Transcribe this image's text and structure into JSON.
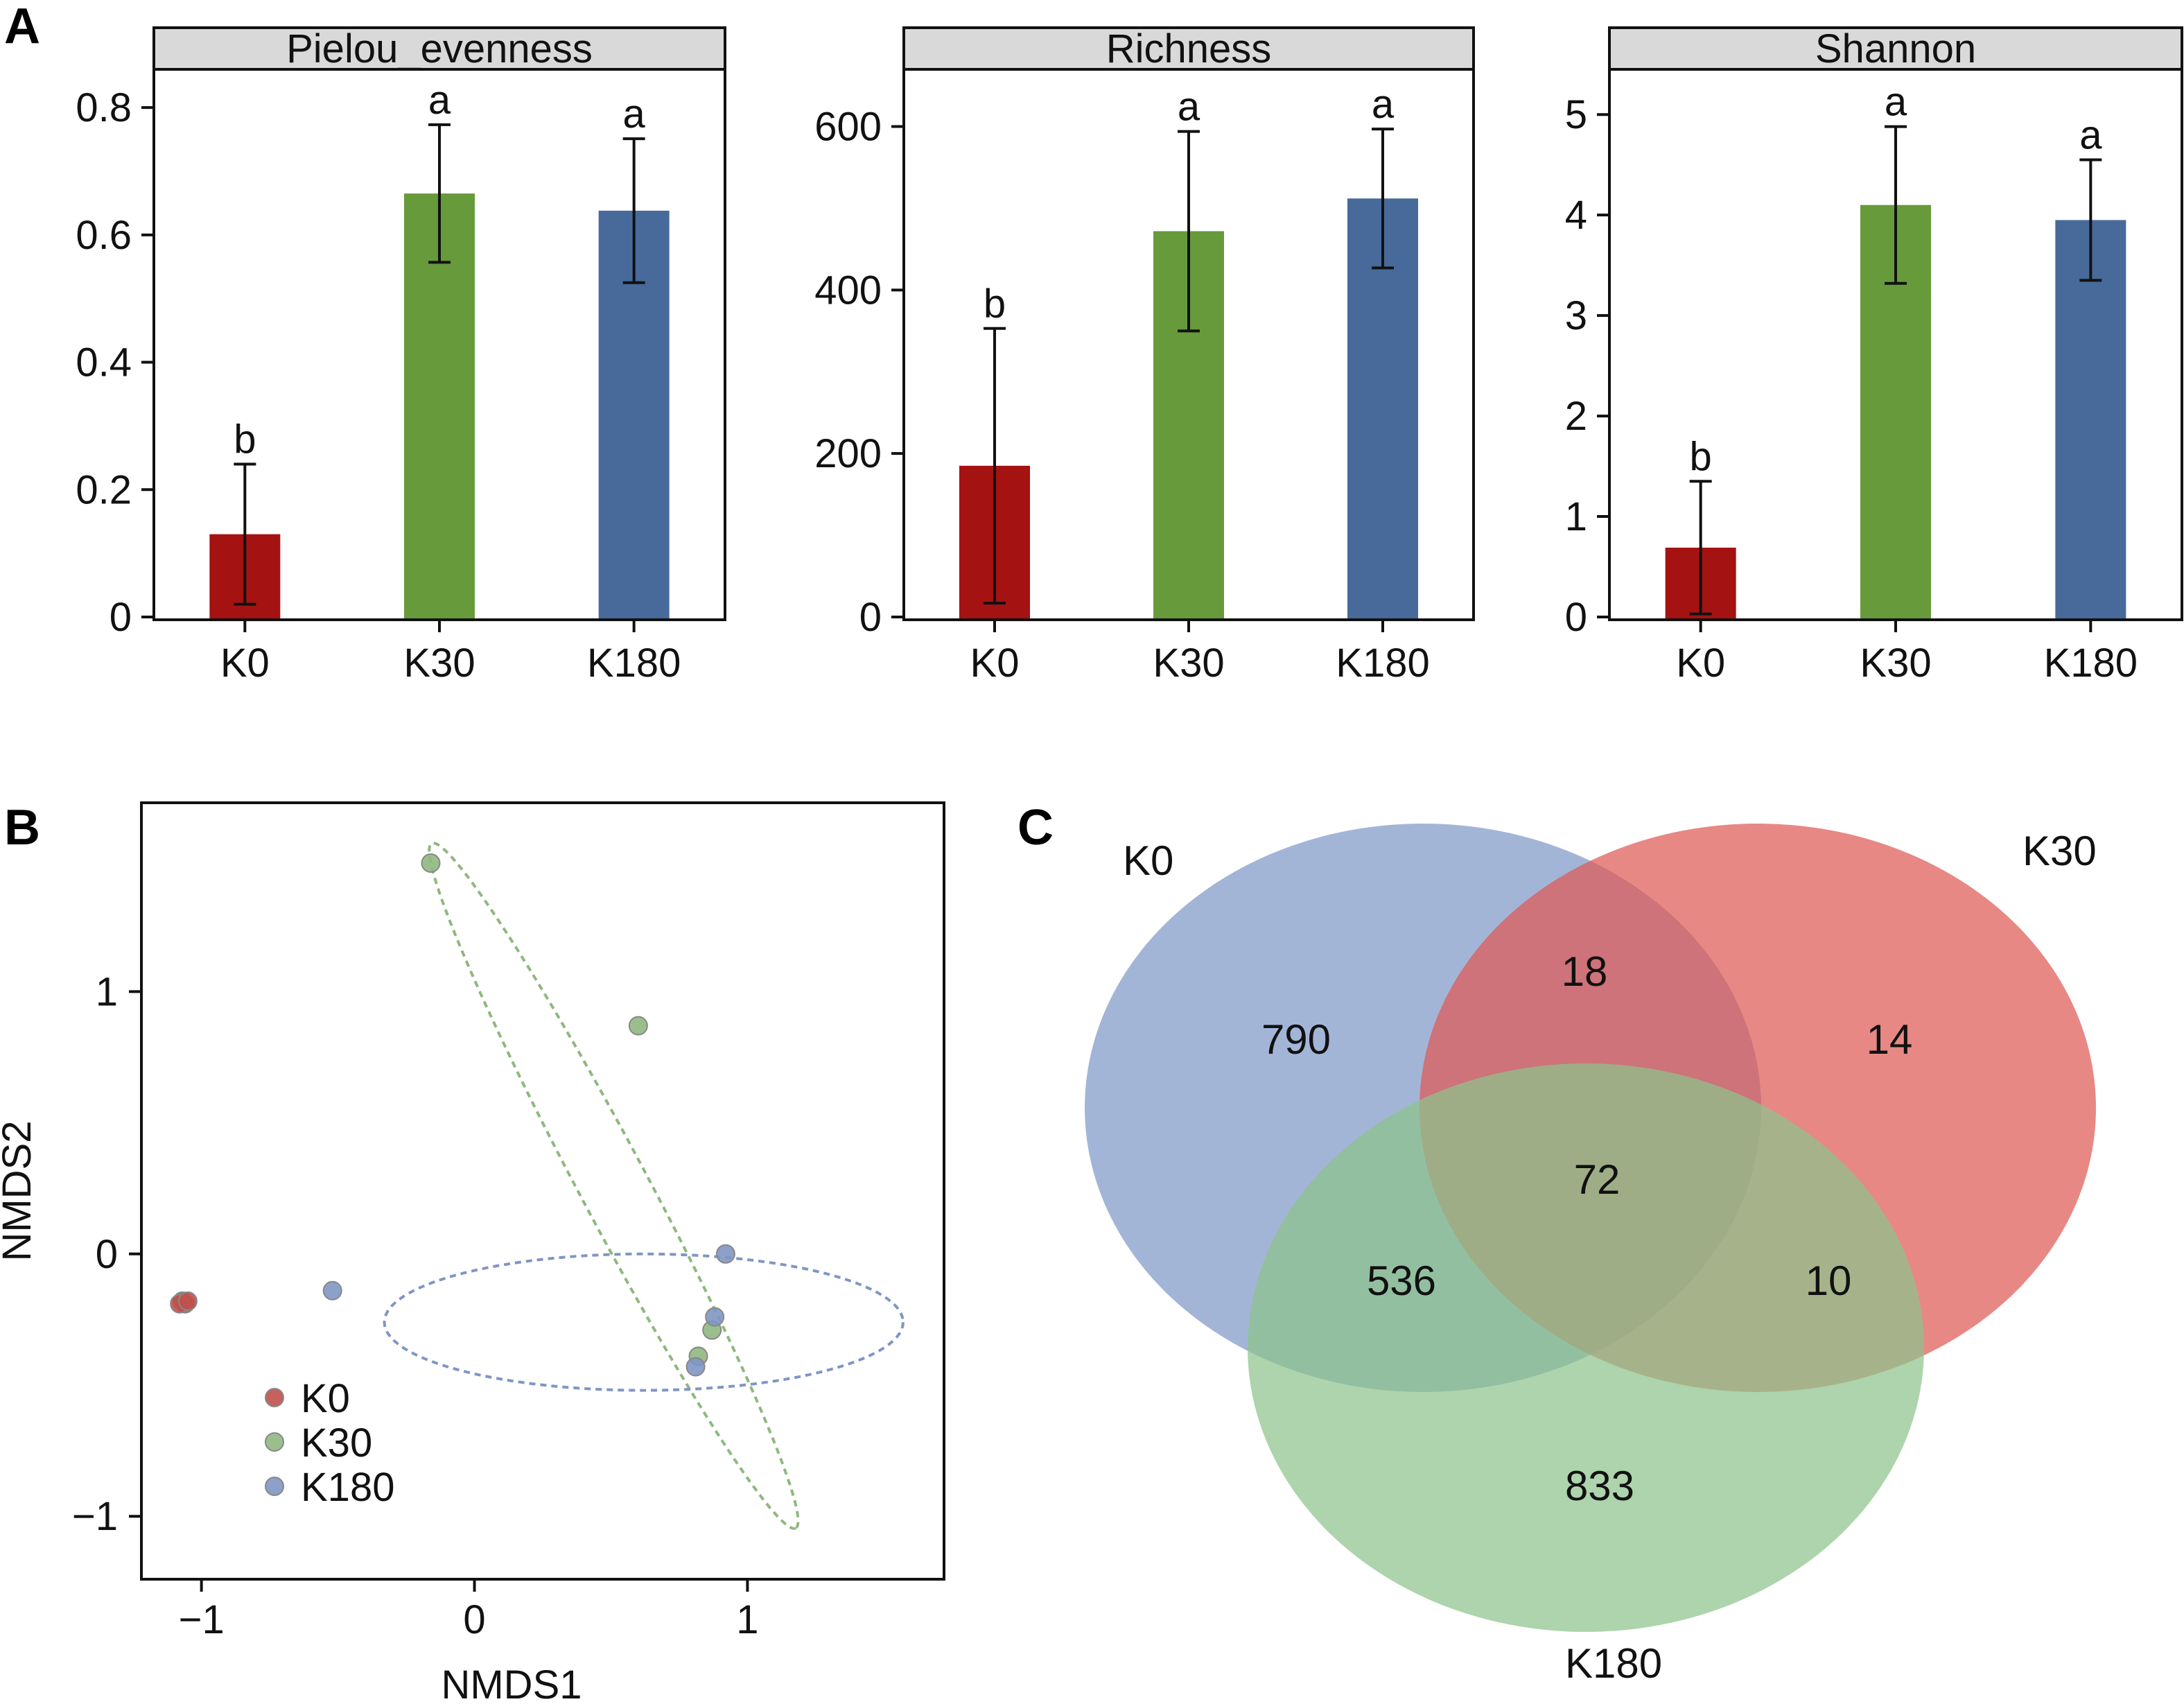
{
  "panel_labels": {
    "a": "A",
    "b": "B",
    "c": "C"
  },
  "colors": {
    "K0": "#a51212",
    "K30": "#679a3b",
    "K180": "#476a9b"
  },
  "chart_data": [
    {
      "type": "bar",
      "panel": "A",
      "title": "Pielou_evenness",
      "categories": [
        "K0",
        "K30",
        "K180"
      ],
      "values": [
        0.13,
        0.665,
        0.638
      ],
      "errors": [
        0.11,
        0.108,
        0.113
      ],
      "significance": [
        "b",
        "a",
        "a"
      ],
      "ylim": [
        0,
        0.86
      ],
      "yticks": [
        0,
        0.2,
        0.4,
        0.6,
        0.8
      ],
      "ytick_labels": [
        "0",
        "0.2",
        "0.4",
        "0.6",
        "0.8"
      ]
    },
    {
      "type": "bar",
      "panel": "A",
      "title": "Richness",
      "categories": [
        "K0",
        "K30",
        "K180"
      ],
      "values": [
        185,
        472,
        512
      ],
      "errors": [
        168,
        122,
        85
      ],
      "significance": [
        "b",
        "a",
        "a"
      ],
      "ylim": [
        0,
        670
      ],
      "yticks": [
        0,
        200,
        400,
        600
      ],
      "ytick_labels": [
        "0",
        "200",
        "400",
        "600"
      ]
    },
    {
      "type": "bar",
      "panel": "A",
      "title": "Shannon",
      "categories": [
        "K0",
        "K30",
        "K180"
      ],
      "values": [
        0.69,
        4.1,
        3.95
      ],
      "errors": [
        0.66,
        0.78,
        0.6
      ],
      "significance": [
        "b",
        "a",
        "a"
      ],
      "ylim": [
        0,
        5.45
      ],
      "yticks": [
        0,
        1,
        2,
        3,
        4,
        5
      ],
      "ytick_labels": [
        "0",
        "1",
        "2",
        "3",
        "4",
        "5"
      ]
    },
    {
      "type": "scatter",
      "panel": "B",
      "xlabel": "NMDS1",
      "ylabel": "NMDS2",
      "xlim": [
        -1.22,
        1.72
      ],
      "ylim": [
        -1.24,
        1.72
      ],
      "xticks": [
        -1,
        0,
        1
      ],
      "xtick_labels": [
        "−1",
        "0",
        "1"
      ],
      "yticks": [
        -1,
        0,
        1
      ],
      "ytick_labels": [
        "−1",
        "0",
        "1"
      ],
      "legend_position": "bottom-left",
      "series": [
        {
          "name": "K0",
          "color": "#c0504d",
          "points": [
            [
              -1.07,
              -0.18
            ],
            [
              -1.06,
              -0.19
            ],
            [
              -1.08,
              -0.19
            ],
            [
              -1.05,
              -0.18
            ]
          ]
        },
        {
          "name": "K30",
          "color": "#8fb87f",
          "points": [
            [
              -0.16,
              1.49
            ],
            [
              0.6,
              0.87
            ],
            [
              0.87,
              -0.29
            ],
            [
              0.82,
              -0.39
            ]
          ],
          "ellipse": {
            "center": [
              0.51,
              0.26
            ],
            "rx": 1.42,
            "ry": 0.13,
            "angle_deg": 62
          }
        },
        {
          "name": "K180",
          "color": "#7f96c4",
          "points": [
            [
              -0.52,
              -0.14
            ],
            [
              0.92,
              0.0
            ],
            [
              0.88,
              -0.24
            ],
            [
              0.81,
              -0.43
            ]
          ],
          "ellipse": {
            "center": [
              0.62,
              -0.26
            ],
            "rx": 0.95,
            "ry": 0.26,
            "angle_deg": 0
          }
        }
      ]
    }
  ],
  "venn": {
    "panel": "C",
    "sets": [
      {
        "name": "K0",
        "color": "#7f98c8"
      },
      {
        "name": "K30",
        "color": "#de5a55"
      },
      {
        "name": "K180",
        "color": "#8ec48c"
      }
    ],
    "regions": {
      "K0_only": "790",
      "K30_only": "14",
      "K180_only": "833",
      "K0_K30": "18",
      "K0_K180": "536",
      "K30_K180": "10",
      "all": "72"
    }
  }
}
